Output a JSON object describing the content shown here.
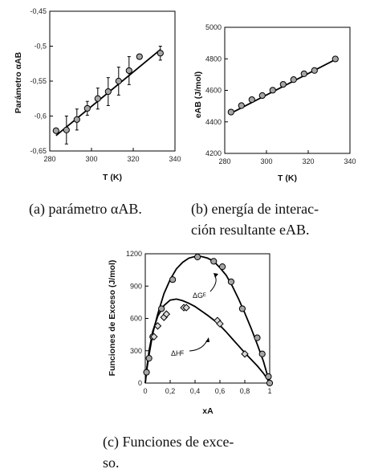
{
  "captions": {
    "a_line1": "(a) parámetro αAB.",
    "b_line1": "(b) energía de interac-",
    "b_line2": "ción resultante eAB.",
    "c_line1": "(c) Funciones de exce-",
    "c_line2": "so."
  },
  "chart_data": [
    {
      "type": "scatter",
      "ylabel": "Parámetro αAB",
      "xlabel": "T (K)",
      "xlim": [
        280,
        340
      ],
      "ylim": [
        -0.65,
        -0.45
      ],
      "xticks": [
        280,
        300,
        320,
        340
      ],
      "xtick_labels": [
        "280",
        "300",
        "320",
        "340"
      ],
      "yticks": [
        -0.65,
        -0.6,
        -0.55,
        -0.5,
        -0.45
      ],
      "ytick_labels": [
        "-0,65",
        "-0,6",
        "-0,55",
        "-0,5",
        "-0,45"
      ],
      "series": [
        {
          "x": [
            283,
            288,
            293,
            298,
            303,
            308,
            313,
            318,
            323,
            333
          ],
          "y": [
            -0.621,
            -0.62,
            -0.605,
            -0.589,
            -0.575,
            -0.565,
            -0.55,
            -0.535,
            -0.515,
            -0.51
          ],
          "err": [
            0,
            0.02,
            0.015,
            0.01,
            0.015,
            0.02,
            0.02,
            0.02,
            0,
            0.01
          ]
        }
      ],
      "fit_line": {
        "x": [
          283,
          333
        ],
        "y": [
          -0.628,
          -0.505
        ]
      }
    },
    {
      "type": "scatter",
      "ylabel": "eAB (J/mol)",
      "xlabel": "T (K)",
      "xlim": [
        280,
        340
      ],
      "ylim": [
        4200,
        5000
      ],
      "xticks": [
        280,
        300,
        320,
        340
      ],
      "xtick_labels": [
        "280",
        "300",
        "320",
        "340"
      ],
      "yticks": [
        4200,
        4400,
        4600,
        4800,
        5000
      ],
      "ytick_labels": [
        "4200",
        "4400",
        "4600",
        "4800",
        "5000"
      ],
      "series": [
        {
          "x": [
            283,
            288,
            293,
            298,
            303,
            308,
            313,
            318,
            323,
            333
          ],
          "y": [
            4462,
            4503,
            4541,
            4567,
            4601,
            4638,
            4668,
            4705,
            4726,
            4799
          ]
        }
      ],
      "fit_line": {
        "x": [
          283,
          333
        ],
        "y": [
          4455,
          4795
        ]
      }
    },
    {
      "type": "scatter",
      "ylabel": "Funciones de Exceso (J/mol)",
      "xlabel": "xA",
      "xlim": [
        0,
        1
      ],
      "ylim": [
        0,
        1200
      ],
      "xticks": [
        0,
        0.2,
        0.4,
        0.6,
        0.8,
        1
      ],
      "xtick_labels": [
        "0",
        "0,2",
        "0,4",
        "0,6",
        "0,8",
        "1"
      ],
      "yticks": [
        0,
        300,
        600,
        900,
        1200
      ],
      "ytick_labels": [
        "0",
        "300",
        "600",
        "900",
        "1200"
      ],
      "series": [
        {
          "name": "ΔGᴱ",
          "marker": "circle",
          "x": [
            0.01,
            0.03,
            0.06,
            0.13,
            0.22,
            0.42,
            0.55,
            0.62,
            0.69,
            0.78,
            0.9,
            0.94,
            0.99,
            1.0
          ],
          "y": [
            100,
            230,
            430,
            690,
            960,
            1170,
            1130,
            1080,
            940,
            690,
            420,
            270,
            60,
            0
          ]
        },
        {
          "name": "ΔHᴱ",
          "marker": "diamond",
          "x": [
            0.07,
            0.1,
            0.15,
            0.17,
            0.31,
            0.33,
            0.58,
            0.6,
            0.8
          ],
          "y": [
            430,
            530,
            610,
            640,
            700,
            700,
            580,
            550,
            270
          ]
        }
      ],
      "fit_curves": {
        "G": {
          "x": [
            0,
            0.01,
            0.03,
            0.06,
            0.1,
            0.15,
            0.2,
            0.25,
            0.3,
            0.35,
            0.4,
            0.45,
            0.5,
            0.55,
            0.6,
            0.65,
            0.7,
            0.75,
            0.8,
            0.85,
            0.9,
            0.95,
            0.98,
            1.0
          ],
          "y": [
            0,
            110,
            260,
            460,
            640,
            830,
            960,
            1060,
            1120,
            1160,
            1175,
            1175,
            1160,
            1130,
            1070,
            1000,
            900,
            780,
            650,
            510,
            360,
            200,
            80,
            0
          ]
        },
        "H": {
          "x": [
            0,
            0.01,
            0.03,
            0.06,
            0.1,
            0.15,
            0.2,
            0.25,
            0.3,
            0.35,
            0.4,
            0.45,
            0.5,
            0.55,
            0.6,
            0.65,
            0.7,
            0.75,
            0.8,
            0.85,
            0.9,
            0.95,
            0.98,
            1.0
          ],
          "y": [
            0,
            120,
            300,
            480,
            620,
            720,
            770,
            780,
            765,
            740,
            710,
            670,
            630,
            585,
            535,
            475,
            410,
            345,
            280,
            220,
            160,
            90,
            40,
            0
          ]
        }
      },
      "annotations": [
        "ΔGᴱ",
        "ΔHᴱ"
      ]
    }
  ]
}
